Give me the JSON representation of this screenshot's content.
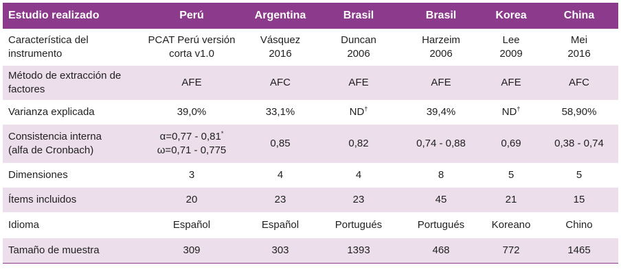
{
  "header": {
    "col0": "Estudio realizado",
    "col1": "Perú",
    "col2": "Argentina",
    "col3": "Brasil",
    "col4": "Brasil",
    "col5": "Korea",
    "col6": "China"
  },
  "rows": {
    "caracteristica": {
      "label_line1": "Característica del",
      "label_line2": "instrumento",
      "peru_line1": "PCAT Perú versión",
      "peru_line2": "corta v1.0",
      "argentina_line1": "Vásquez",
      "argentina_line2": "2016",
      "brasil1_line1": "Duncan",
      "brasil1_line2": "2006",
      "brasil2_line1": "Harzeim",
      "brasil2_line2": "2006",
      "korea_line1": "Lee",
      "korea_line2": "2009",
      "china_line1": "Mei",
      "china_line2": "2016"
    },
    "metodo": {
      "label_line1": "Método de extracción de",
      "label_line2": "factores",
      "peru": "AFE",
      "argentina": "AFC",
      "brasil1": "AFE",
      "brasil2": "AFE",
      "korea": "AFE",
      "china": "AFC"
    },
    "varianza": {
      "label": "Varianza explicada",
      "peru": "39,0%",
      "argentina": "33,1%",
      "brasil1": "ND",
      "brasil1_mark": "†",
      "brasil2": "39,4%",
      "korea": "ND",
      "korea_mark": "†",
      "china": "58,90%"
    },
    "consistencia": {
      "label_line1": "Consistencia interna",
      "label_line2": "(alfa de Cronbach)",
      "peru_line1": "α=0,77 - 0,81",
      "peru_line1_mark": "*",
      "peru_line2": "ω=0,71 - 0,775",
      "argentina": "0,85",
      "brasil1": "0,82",
      "brasil2": "0,74 - 0,88",
      "korea": "0,69",
      "china": "0,38 - 0,74"
    },
    "dimensiones": {
      "label": "Dimensiones",
      "peru": "3",
      "argentina": "4",
      "brasil1": "4",
      "brasil2": "8",
      "korea": "5",
      "china": "5"
    },
    "items": {
      "label": "Ítems incluidos",
      "peru": "20",
      "argentina": "23",
      "brasil1": "23",
      "brasil2": "45",
      "korea": "21",
      "china": "15"
    },
    "idioma": {
      "label": "Idioma",
      "peru": "Español",
      "argentina": "Español",
      "brasil1": "Portugués",
      "brasil2": "Portugués",
      "korea": "Koreano",
      "china": "Chino"
    },
    "tamano": {
      "label": "Tamaño de muestra",
      "peru": "309",
      "argentina": "303",
      "brasil1": "1393",
      "brasil2": "468",
      "korea": "772",
      "china": "1465"
    }
  },
  "colors": {
    "header_bg": "#8b3a8c",
    "stripe_bg": "#ecdfeb"
  }
}
